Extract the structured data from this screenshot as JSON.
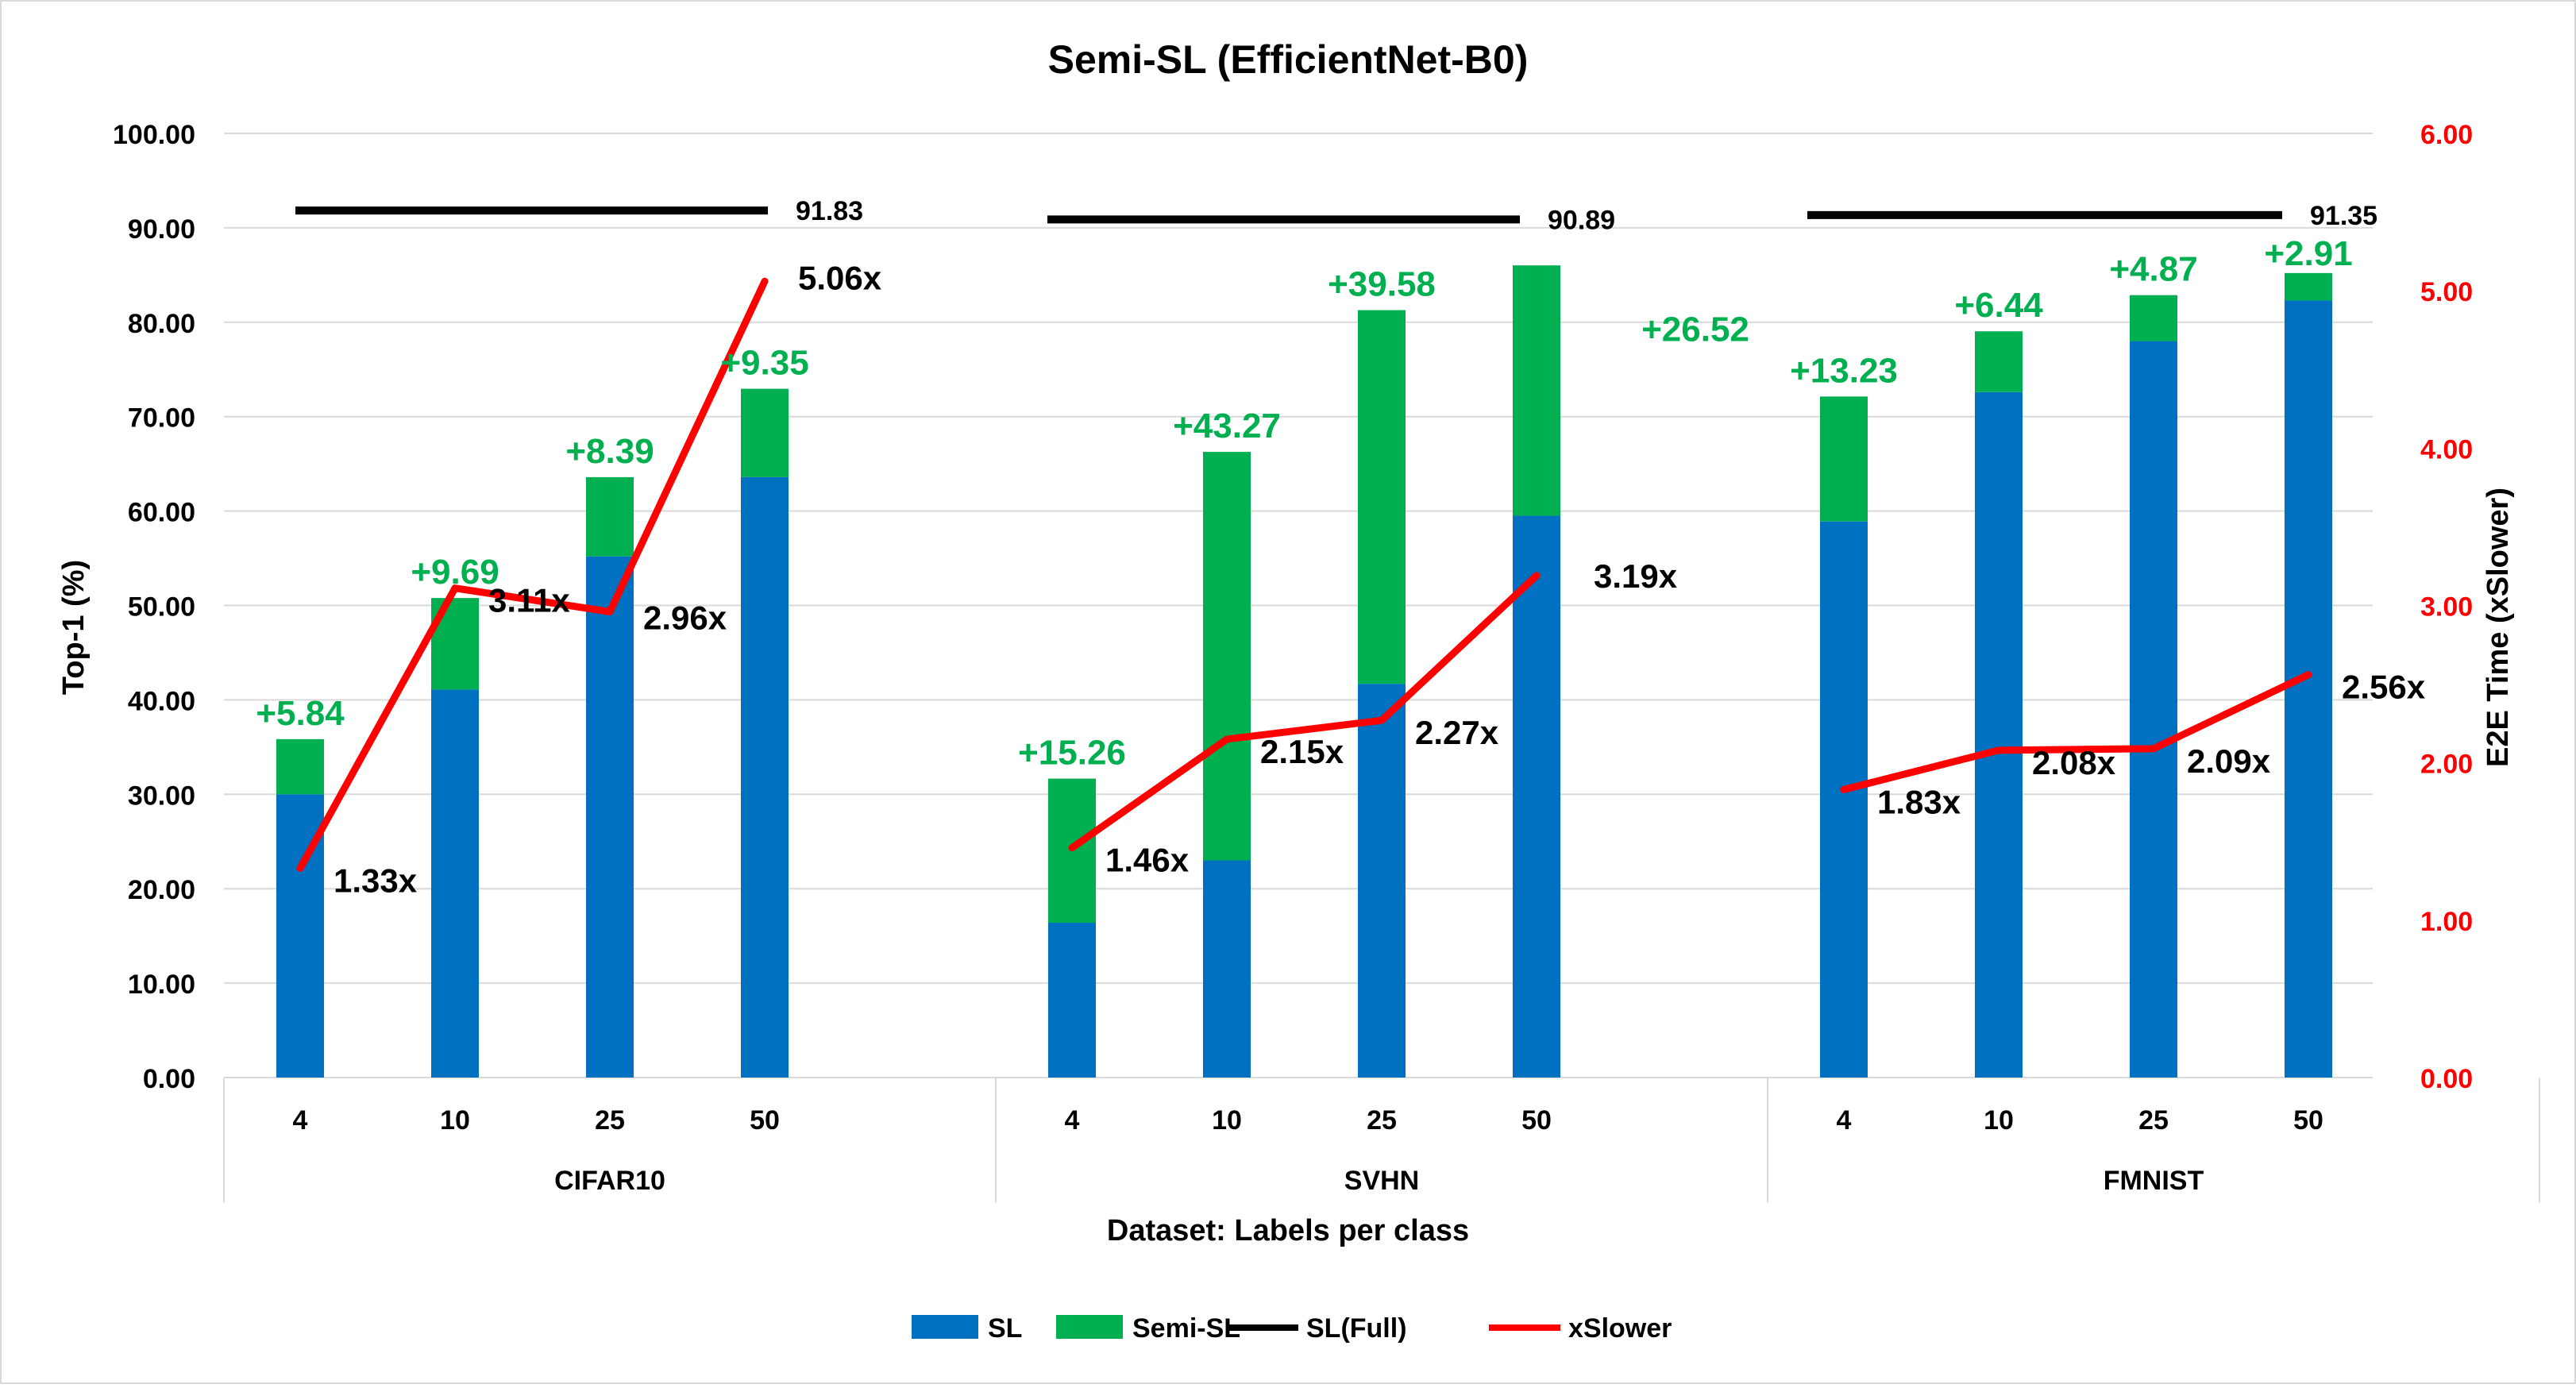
{
  "colors": {
    "sl": "#0070C0",
    "semi": "#00B050",
    "full": "#000000",
    "slower": "#FF0000",
    "grid": "#D9D9D9",
    "text": "#000000"
  },
  "chart_data": {
    "type": "bar",
    "title": "Semi-SL (EfficientNet-B0)",
    "xlabel": "Dataset: Labels per class",
    "ylabel": "Top-1 (%)",
    "y2label": "E2E Time (xSlower)",
    "ylim": [
      0,
      100
    ],
    "y2lim": [
      0,
      6
    ],
    "yticks": [
      "0.00",
      "10.00",
      "20.00",
      "30.00",
      "40.00",
      "50.00",
      "60.00",
      "70.00",
      "80.00",
      "90.00",
      "100.00"
    ],
    "y2ticks": [
      "0.00",
      "1.00",
      "2.00",
      "3.00",
      "4.00",
      "5.00",
      "6.00"
    ],
    "grid": true,
    "legend_position": "bottom",
    "legend": [
      "SL",
      "Semi-SL",
      "SL(Full)",
      "xSlower"
    ],
    "groups": [
      {
        "name": "CIFAR10",
        "categories": [
          "4",
          "10",
          "25",
          "50"
        ],
        "sl": [
          30.0,
          41.1,
          55.2,
          63.6
        ],
        "semi_gain": [
          5.84,
          9.69,
          8.39,
          9.35
        ],
        "semi_labels": [
          "+5.84",
          "+9.69",
          "+8.39",
          "+9.35"
        ],
        "sl_full": 91.83,
        "sl_full_label": "91.83",
        "xslower": [
          1.33,
          3.11,
          2.96,
          5.06
        ],
        "xslower_labels": [
          "1.33x",
          "3.11x",
          "2.96x",
          "5.06x"
        ]
      },
      {
        "name": "SVHN",
        "categories": [
          "4",
          "10",
          "25",
          "50"
        ],
        "sl": [
          16.4,
          23.0,
          41.7,
          59.5
        ],
        "semi_gain": [
          15.26,
          43.27,
          39.58,
          26.52
        ],
        "semi_labels": [
          "+15.26",
          "+43.27",
          "+39.58",
          "+26.52"
        ],
        "sl_full": 90.89,
        "sl_full_label": "90.89",
        "xslower": [
          1.46,
          2.15,
          2.27,
          3.19
        ],
        "xslower_labels": [
          "1.46x",
          "2.15x",
          "2.27x",
          "3.19x"
        ]
      },
      {
        "name": "FMNIST",
        "categories": [
          "4",
          "10",
          "25",
          "50"
        ],
        "sl": [
          58.9,
          72.6,
          78.0,
          82.3
        ],
        "semi_gain": [
          13.23,
          6.44,
          4.87,
          2.91
        ],
        "semi_labels": [
          "+13.23",
          "+6.44",
          "+4.87",
          "+2.91"
        ],
        "sl_full": 91.35,
        "sl_full_label": "91.35",
        "xslower": [
          1.83,
          2.08,
          2.09,
          2.56
        ],
        "xslower_labels": [
          "1.83x",
          "2.08x",
          "2.09x",
          "2.56x"
        ]
      }
    ]
  }
}
